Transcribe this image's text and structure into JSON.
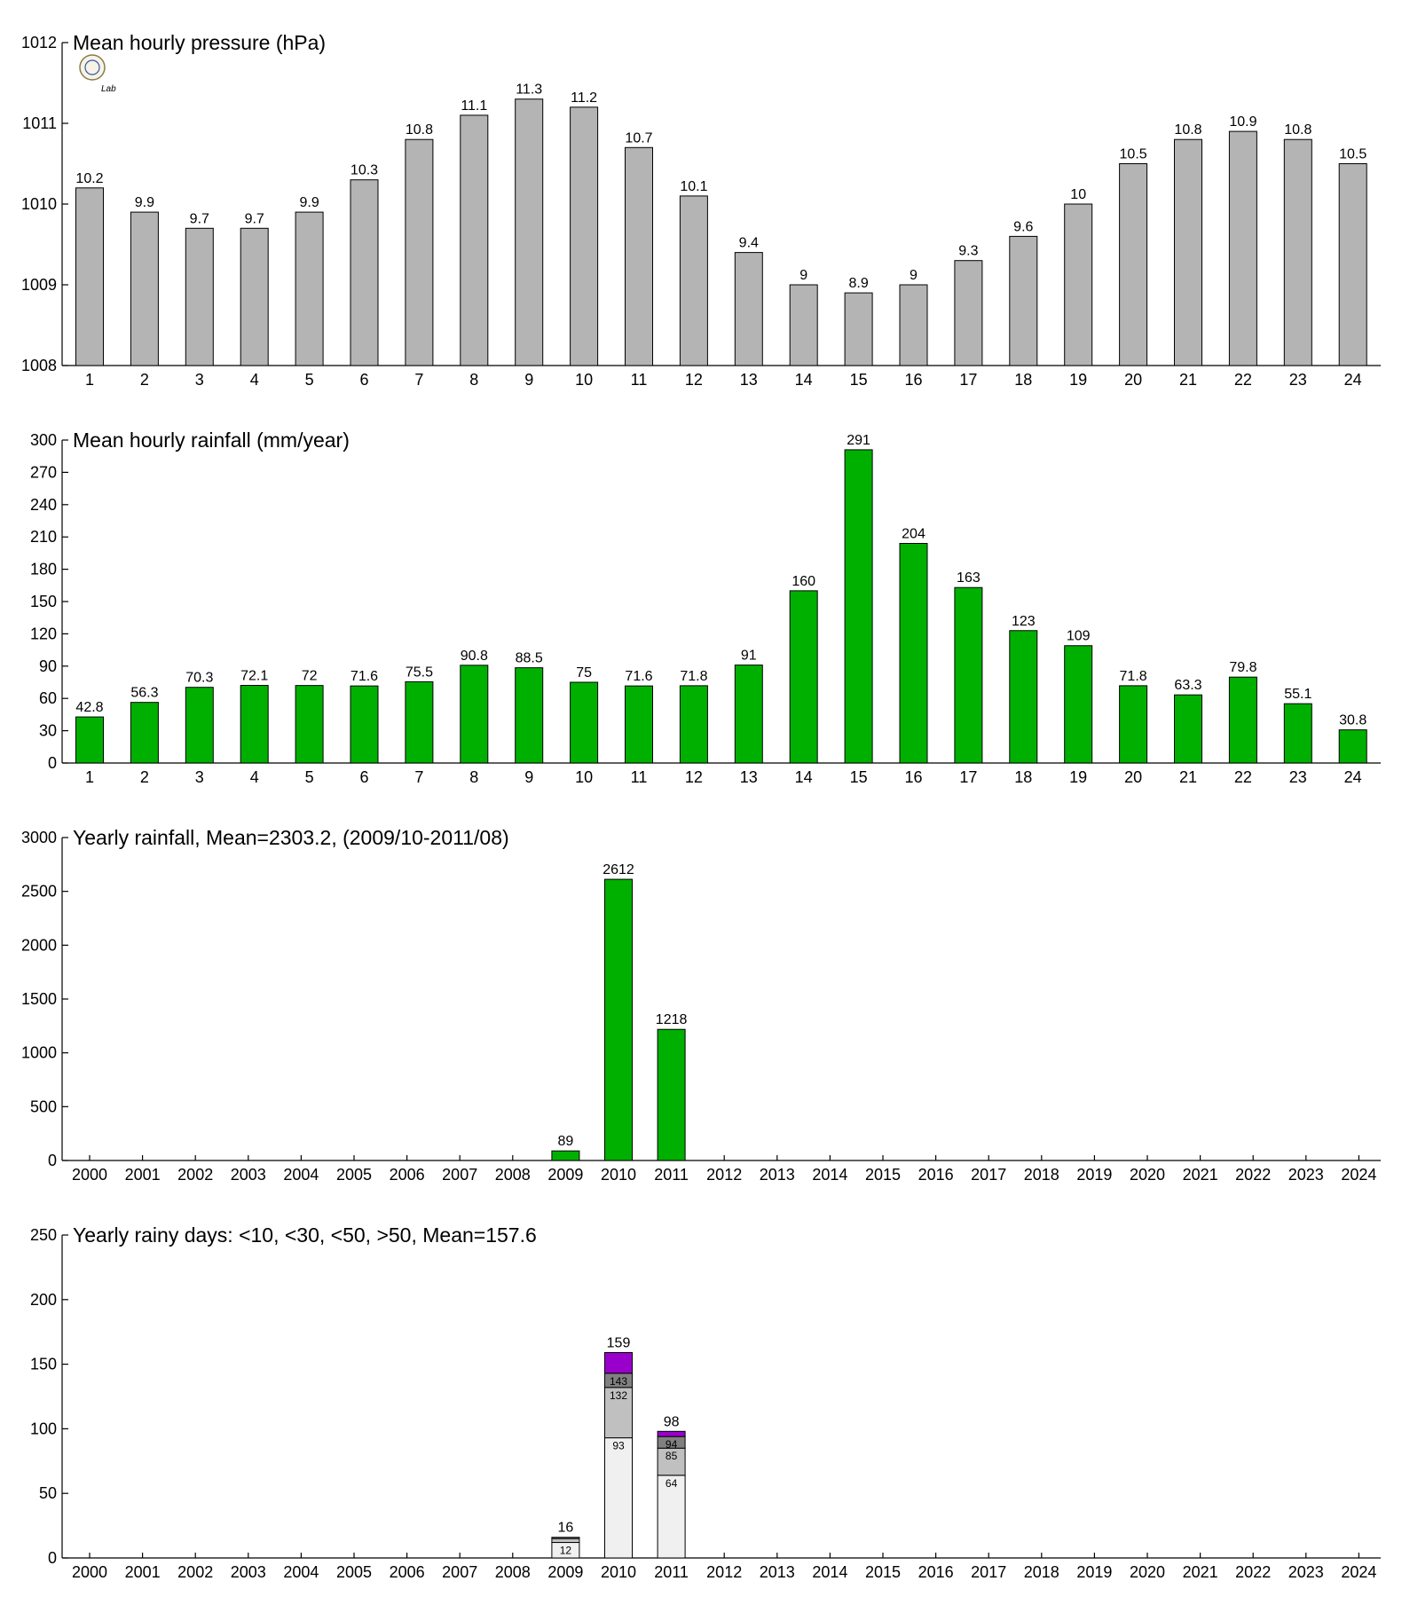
{
  "logo": {
    "text": "Lab"
  },
  "chart_data": [
    {
      "type": "bar",
      "title": "Mean hourly pressure (hPa)",
      "categories": [
        "1",
        "2",
        "3",
        "4",
        "5",
        "6",
        "7",
        "8",
        "9",
        "10",
        "11",
        "12",
        "13",
        "14",
        "15",
        "16",
        "17",
        "18",
        "19",
        "20",
        "21",
        "22",
        "23",
        "24"
      ],
      "values": [
        1010.2,
        1009.9,
        1009.7,
        1009.7,
        1009.9,
        1010.3,
        1010.8,
        1011.1,
        1011.3,
        1011.2,
        1010.7,
        1010.1,
        1009.4,
        1009.0,
        1008.9,
        1009.0,
        1009.3,
        1009.6,
        1010.0,
        1010.5,
        1010.8,
        1010.9,
        1010.8,
        1010.5
      ],
      "labels": [
        "10.2",
        "9.9",
        "9.7",
        "9.7",
        "9.9",
        "10.3",
        "10.8",
        "11.1",
        "11.3",
        "11.2",
        "10.7",
        "10.1",
        "9.4",
        "9",
        "8.9",
        "9",
        "9.3",
        "9.6",
        "10",
        "10.5",
        "10.8",
        "10.9",
        "10.8",
        "10.5"
      ],
      "ylim": [
        1008,
        1012
      ],
      "yticks": [
        "1008",
        "1009",
        "1010",
        "1011",
        "1012"
      ],
      "color": "#b4b4b4"
    },
    {
      "type": "bar",
      "title": "Mean hourly rainfall (mm/year)",
      "categories": [
        "1",
        "2",
        "3",
        "4",
        "5",
        "6",
        "7",
        "8",
        "9",
        "10",
        "11",
        "12",
        "13",
        "14",
        "15",
        "16",
        "17",
        "18",
        "19",
        "20",
        "21",
        "22",
        "23",
        "24"
      ],
      "values": [
        42.8,
        56.3,
        70.3,
        72.1,
        72,
        71.6,
        75.5,
        90.8,
        88.5,
        75,
        71.6,
        71.8,
        91,
        160,
        291,
        204,
        163,
        123,
        109,
        71.8,
        63.3,
        79.8,
        55.1,
        30.8
      ],
      "labels": [
        "42.8",
        "56.3",
        "70.3",
        "72.1",
        "72",
        "71.6",
        "75.5",
        "90.8",
        "88.5",
        "75",
        "71.6",
        "71.8",
        "91",
        "160",
        "291",
        "204",
        "163",
        "123",
        "109",
        "71.8",
        "63.3",
        "79.8",
        "55.1",
        "30.8"
      ],
      "ylim": [
        0,
        300
      ],
      "yticks": [
        "0",
        "30",
        "60",
        "90",
        "120",
        "150",
        "180",
        "210",
        "240",
        "270",
        "300"
      ],
      "color": "#00b000"
    },
    {
      "type": "bar",
      "title": "Yearly rainfall, Mean=2303.2, (2009/10-2011/08)",
      "categories": [
        "2000",
        "2001",
        "2002",
        "2003",
        "2004",
        "2005",
        "2006",
        "2007",
        "2008",
        "2009",
        "2010",
        "2011",
        "2012",
        "2013",
        "2014",
        "2015",
        "2016",
        "2017",
        "2018",
        "2019",
        "2020",
        "2021",
        "2022",
        "2023",
        "2024"
      ],
      "values": [
        null,
        null,
        null,
        null,
        null,
        null,
        null,
        null,
        null,
        89,
        2612,
        1218,
        null,
        null,
        null,
        null,
        null,
        null,
        null,
        null,
        null,
        null,
        null,
        null,
        null
      ],
      "labels": [
        "",
        "",
        "",
        "",
        "",
        "",
        "",
        "",
        "",
        "89",
        "2612",
        "1218",
        "",
        "",
        "",
        "",
        "",
        "",
        "",
        "",
        "",
        "",
        "",
        "",
        ""
      ],
      "ylim": [
        0,
        3000
      ],
      "yticks": [
        "0",
        "500",
        "1000",
        "1500",
        "2000",
        "2500",
        "3000"
      ],
      "color": "#00b000"
    },
    {
      "type": "stacked_bar",
      "title": "Yearly rainy days: <10, <30, <50, >50, Mean=157.6",
      "categories": [
        "2000",
        "2001",
        "2002",
        "2003",
        "2004",
        "2005",
        "2006",
        "2007",
        "2008",
        "2009",
        "2010",
        "2011",
        "2012",
        "2013",
        "2014",
        "2015",
        "2016",
        "2017",
        "2018",
        "2019",
        "2020",
        "2021",
        "2022",
        "2023",
        "2024"
      ],
      "series": [
        {
          "name": "<10",
          "color": "#f0f0f0",
          "cumulative": [
            null,
            null,
            null,
            null,
            null,
            null,
            null,
            null,
            null,
            12,
            93,
            64,
            null,
            null,
            null,
            null,
            null,
            null,
            null,
            null,
            null,
            null,
            null,
            null,
            null
          ]
        },
        {
          "name": "<30",
          "color": "#c0c0c0",
          "cumulative": [
            null,
            null,
            null,
            null,
            null,
            null,
            null,
            null,
            null,
            15,
            132,
            85,
            null,
            null,
            null,
            null,
            null,
            null,
            null,
            null,
            null,
            null,
            null,
            null,
            null
          ]
        },
        {
          "name": "<50",
          "color": "#808080",
          "cumulative": [
            null,
            null,
            null,
            null,
            null,
            null,
            null,
            null,
            null,
            16,
            143,
            94,
            null,
            null,
            null,
            null,
            null,
            null,
            null,
            null,
            null,
            null,
            null,
            null,
            null
          ]
        },
        {
          "name": ">50",
          "color": "#9900cc",
          "cumulative": [
            null,
            null,
            null,
            null,
            null,
            null,
            null,
            null,
            null,
            16,
            159,
            98,
            null,
            null,
            null,
            null,
            null,
            null,
            null,
            null,
            null,
            null,
            null,
            null,
            null
          ]
        }
      ],
      "segment_labels": [
        [],
        [],
        [],
        [],
        [],
        [],
        [],
        [],
        [],
        [
          "12",
          "",
          ""
        ],
        [
          "93",
          "132",
          "143"
        ],
        [
          "64",
          "85",
          "94"
        ],
        [],
        [],
        [],
        [],
        [],
        [],
        [],
        [],
        [],
        [],
        [],
        [],
        []
      ],
      "totals": [
        "",
        "",
        "",
        "",
        "",
        "",
        "",
        "",
        "",
        "16",
        "159",
        "98",
        "",
        "",
        "",
        "",
        "",
        "",
        "",
        "",
        "",
        "",
        "",
        "",
        ""
      ],
      "ylim": [
        0,
        250
      ],
      "yticks": [
        "0",
        "50",
        "100",
        "150",
        "200",
        "250"
      ]
    }
  ]
}
